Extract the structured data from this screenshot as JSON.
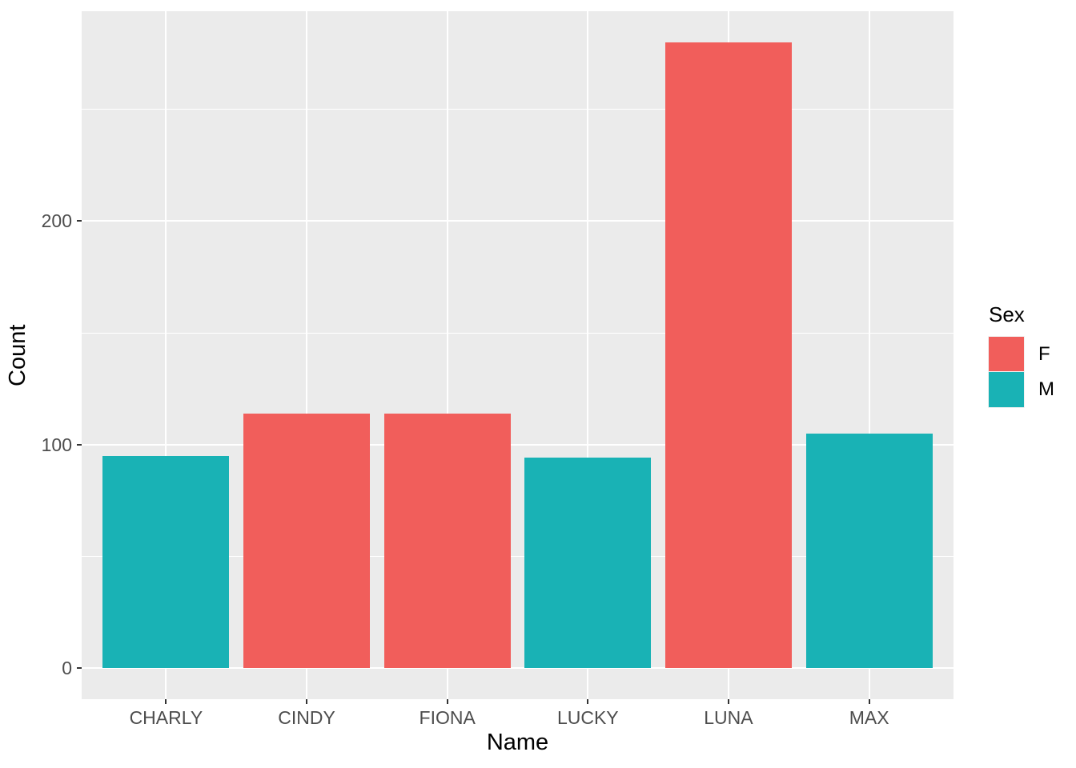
{
  "chart_data": {
    "type": "bar",
    "title": "",
    "xlabel": "Name",
    "ylabel": "Count",
    "categories": [
      "CHARLY",
      "CINDY",
      "FIONA",
      "LUCKY",
      "LUNA",
      "MAX"
    ],
    "bars": [
      {
        "category": "CHARLY",
        "group": "M",
        "value": 95
      },
      {
        "category": "CINDY",
        "group": "F",
        "value": 114
      },
      {
        "category": "FIONA",
        "group": "F",
        "value": 114
      },
      {
        "category": "LUCKY",
        "group": "M",
        "value": 94
      },
      {
        "category": "LUNA",
        "group": "F",
        "value": 280
      },
      {
        "category": "MAX",
        "group": "M",
        "value": 105
      }
    ],
    "legend_title": "Sex",
    "legend_position": "right",
    "legend_entries": [
      {
        "label": "F",
        "color": "#F15E5B"
      },
      {
        "label": "M",
        "color": "#19B2B5"
      }
    ],
    "y_ticks": [
      0,
      100,
      200
    ],
    "y_minor_ticks": [
      50,
      150,
      250
    ],
    "ylim": [
      -14,
      294
    ],
    "grid": true,
    "colors": {
      "panel_bg": "#EBEBEB",
      "grid": "#FFFFFF",
      "tick_text": "#4D4D4D",
      "tick_mark": "#333333",
      "F": "#F15E5B",
      "M": "#19B2B5"
    }
  }
}
